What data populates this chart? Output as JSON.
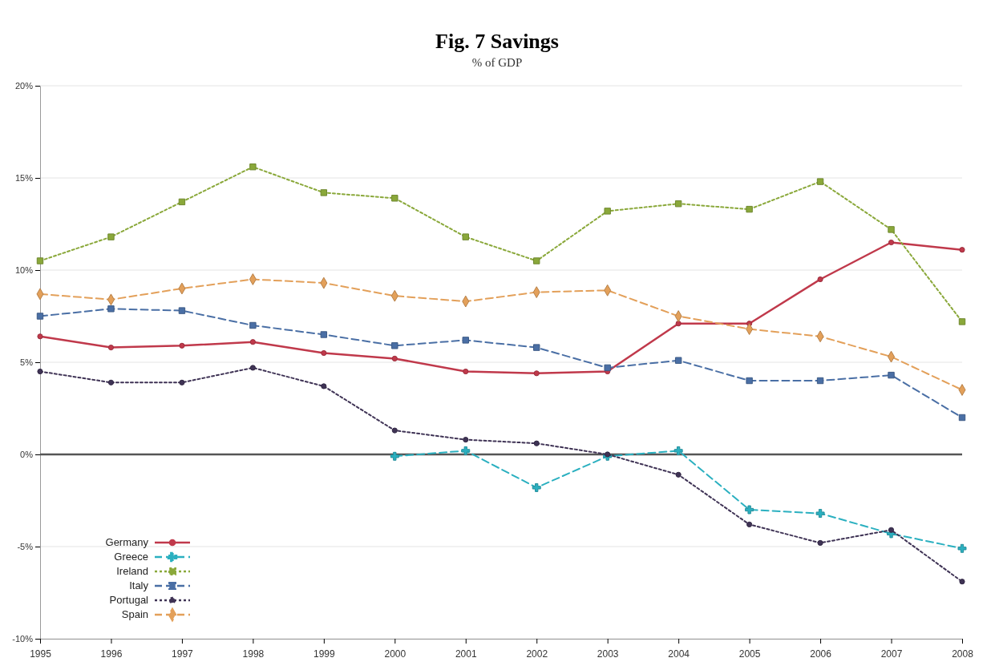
{
  "chart_data": {
    "type": "line",
    "title": "Fig. 7  Savings",
    "subtitle": "% of GDP",
    "categories": [
      "1995",
      "1996",
      "1997",
      "1998",
      "1999",
      "2000",
      "2001",
      "2002",
      "2003",
      "2004",
      "2005",
      "2006",
      "2007",
      "2008"
    ],
    "ylim": [
      -10,
      20
    ],
    "yticks": [
      {
        "value": -10,
        "label": "-10%"
      },
      {
        "value": -5,
        "label": "-5%"
      },
      {
        "value": 0,
        "label": "0%"
      },
      {
        "value": 5,
        "label": "5%"
      },
      {
        "value": 10,
        "label": "10%"
      },
      {
        "value": 15,
        "label": "15%"
      },
      {
        "value": 20,
        "label": "20%"
      }
    ],
    "grid": "y",
    "legend": "bottom left",
    "ref_lines": [
      {
        "axis": "y",
        "value": 0,
        "color": "#555555"
      }
    ],
    "series": [
      {
        "name": "Germany",
        "color": "#c0394b",
        "marker": "circle",
        "line_style": "solid",
        "values": [
          6.4,
          5.8,
          5.9,
          6.1,
          5.5,
          5.2,
          4.5,
          4.4,
          4.5,
          7.1,
          7.1,
          9.5,
          11.5,
          11.1
        ]
      },
      {
        "name": "Greece",
        "color": "#2bb0c0",
        "marker": "cross",
        "line_style": "dashed",
        "values": [
          null,
          null,
          null,
          null,
          null,
          -0.1,
          0.2,
          -1.8,
          -0.1,
          0.2,
          -3.0,
          -3.2,
          -4.3,
          -5.1
        ]
      },
      {
        "name": "Ireland",
        "color": "#8aa83a",
        "marker": "square",
        "line_style": "dotted",
        "values": [
          10.5,
          11.8,
          13.7,
          15.6,
          14.2,
          13.9,
          11.8,
          10.5,
          13.2,
          13.6,
          13.3,
          14.8,
          12.2,
          7.2
        ]
      },
      {
        "name": "Italy",
        "color": "#4a6fa5",
        "marker": "square",
        "line_style": "dashed",
        "values": [
          7.5,
          7.9,
          7.8,
          7.0,
          6.5,
          5.9,
          6.2,
          5.8,
          4.7,
          5.1,
          4.0,
          4.0,
          4.3,
          2.0
        ]
      },
      {
        "name": "Portugal",
        "color": "#3f3355",
        "marker": "circle",
        "line_style": "dotted",
        "values": [
          4.5,
          3.9,
          3.9,
          4.7,
          3.7,
          1.3,
          0.8,
          0.6,
          0.0,
          -1.1,
          -3.8,
          -4.8,
          -4.1,
          -6.9
        ]
      },
      {
        "name": "Spain",
        "color": "#e3a05a",
        "marker": "diamond",
        "line_style": "dashed",
        "values": [
          8.7,
          8.4,
          9.0,
          9.5,
          9.3,
          8.6,
          8.3,
          8.8,
          8.9,
          7.5,
          6.8,
          6.4,
          5.3,
          3.5
        ]
      }
    ]
  }
}
